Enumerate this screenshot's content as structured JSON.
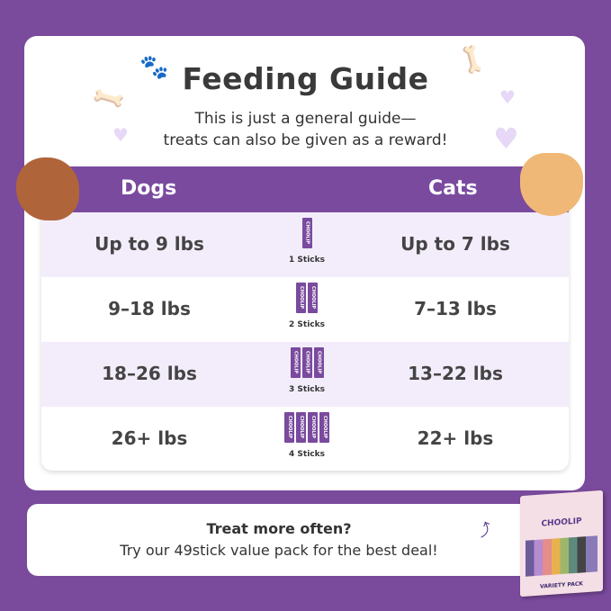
{
  "header": {
    "title": "Feeding Guide",
    "subtitle_line1": "This is just a general guide—",
    "subtitle_line2": "treats can also be given as a reward!"
  },
  "table": {
    "col_dogs": "Dogs",
    "col_cats": "Cats",
    "rows": [
      {
        "dogs": "Up to 9 lbs",
        "sticks": "1 Sticks",
        "count": 1,
        "cats": "Up to 7 lbs"
      },
      {
        "dogs": "9–18 lbs",
        "sticks": "2 Sticks",
        "count": 2,
        "cats": "7–13 lbs"
      },
      {
        "dogs": "18–26 lbs",
        "sticks": "3 Sticks",
        "count": 3,
        "cats": "13–22 lbs"
      },
      {
        "dogs": "26+ lbs",
        "sticks": "4 Sticks",
        "count": 4,
        "cats": "22+ lbs"
      }
    ],
    "stick_brand": "CHOOLIP"
  },
  "promo": {
    "line1": "Treat more often?",
    "line2": "Try our 49stick value pack for the best deal!",
    "box_brand": "CHOOLIP",
    "box_label": "VARIETY PACK"
  },
  "colors": {
    "background": "#7a4a9c",
    "header": "#7a4a9e",
    "row_alt": "#f3edfb"
  }
}
